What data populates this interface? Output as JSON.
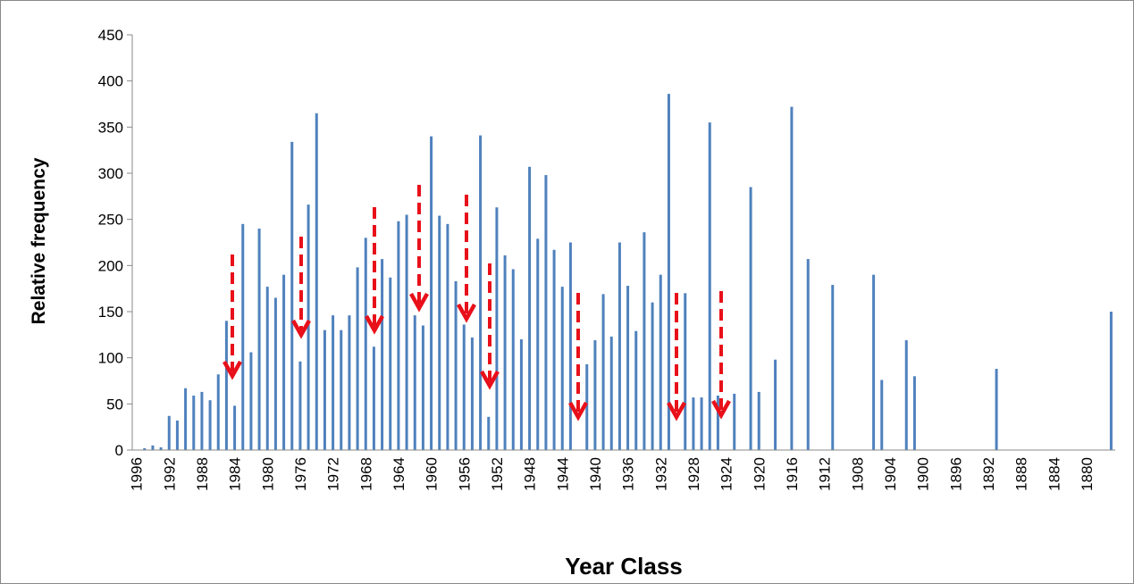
{
  "chart_data": {
    "type": "bar",
    "y_label": "Relative frequency",
    "x_label": "Year Class",
    "color": "#4f81bd",
    "ylim": [
      0,
      450
    ],
    "yticks": [
      0,
      50,
      100,
      150,
      200,
      250,
      300,
      350,
      400,
      450
    ],
    "categories": [
      "1996",
      null,
      null,
      null,
      "1992",
      null,
      null,
      null,
      "1988",
      null,
      null,
      null,
      "1984",
      null,
      null,
      null,
      "1980",
      null,
      null,
      null,
      "1976",
      null,
      null,
      null,
      "1972",
      null,
      null,
      null,
      "1968",
      null,
      null,
      null,
      "1964",
      null,
      null,
      null,
      "1960",
      null,
      null,
      null,
      "1956",
      null,
      null,
      null,
      "1952",
      null,
      null,
      null,
      "1948",
      null,
      null,
      null,
      "1944",
      null,
      null,
      null,
      "1940",
      null,
      null,
      null,
      "1936",
      null,
      null,
      null,
      "1932",
      null,
      null,
      null,
      "1928",
      null,
      null,
      null,
      "1924",
      null,
      null,
      null,
      "1920",
      null,
      null,
      null,
      "1916",
      null,
      null,
      null,
      "1912",
      null,
      null,
      null,
      "1908",
      null,
      null,
      null,
      "1904",
      null,
      null,
      null,
      "1900",
      null,
      null,
      null,
      "1896",
      null,
      null,
      null,
      "1892",
      null,
      null,
      null,
      "1888",
      null,
      null,
      null,
      "1884",
      null,
      null,
      null,
      "1880",
      null,
      null,
      null
    ],
    "values": [
      0,
      2,
      5,
      3,
      37,
      32,
      67,
      59,
      63,
      54,
      82,
      140,
      48,
      245,
      106,
      240,
      177,
      165,
      190,
      334,
      96,
      266,
      365,
      130,
      146,
      130,
      146,
      198,
      230,
      112,
      207,
      187,
      248,
      255,
      146,
      135,
      340,
      254,
      245,
      183,
      136,
      122,
      341,
      36,
      263,
      211,
      196,
      120,
      307,
      229,
      298,
      217,
      177,
      225,
      0,
      93,
      119,
      169,
      123,
      225,
      178,
      129,
      236,
      160,
      190,
      386,
      0,
      170,
      57,
      57,
      355,
      59,
      0,
      61,
      0,
      285,
      63,
      0,
      98,
      0,
      372,
      0,
      207,
      0,
      0,
      179,
      0,
      0,
      0,
      0,
      190,
      76,
      0,
      0,
      119,
      80,
      0,
      0,
      0,
      0,
      0,
      0,
      0,
      0,
      0,
      88,
      0,
      0,
      0,
      0,
      0,
      0,
      0,
      0,
      0,
      0,
      0,
      0,
      0,
      150
    ]
  }
}
